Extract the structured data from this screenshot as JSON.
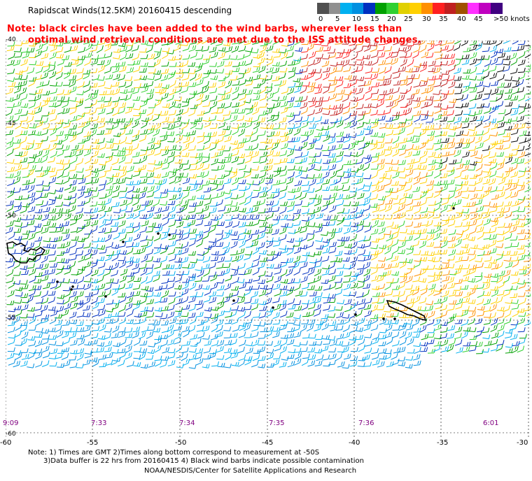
{
  "title": "Rapidscat Winds(12.5KM) 20160415 descending",
  "note_line1": "Note: black circles have been added to the wind barbs, wherever less than",
  "note_line2": "optimal wind retrieval conditions are met due to the ISS attitude changes.",
  "legend": {
    "labels": [
      "0",
      "5",
      "10",
      "15",
      "20",
      "25",
      "30",
      "35",
      "40",
      "45",
      ">50 knots"
    ],
    "colors": [
      "#505050",
      "#909090",
      "#00b0f0",
      "#0090e0",
      "#0030c0",
      "#00a000",
      "#30d030",
      "#e0d000",
      "#ffd000",
      "#ff9000",
      "#ff2020",
      "#c02020",
      "#a05000",
      "#ff30ff",
      "#c000c0",
      "#400080"
    ]
  },
  "time_labels": [
    "9:09",
    "7:33",
    "7:34",
    "7:35",
    "7:36",
    "6:01"
  ],
  "lon_labels": [
    "-60",
    "-55",
    "-50",
    "-45",
    "-40",
    "-35",
    "-30"
  ],
  "lat_labels": [
    "-40",
    "-45",
    "-50",
    "-55",
    "-60"
  ],
  "footer": {
    "line1": "Note: 1) Times are GMT 2)Times along bottom correspond to measurement at -50S",
    "line2": "3)Data buffer is 22 hrs from 20160415 4) Black wind barbs indicate possible contamination",
    "line3": "NOAA/NESDIS/Center for Satellite Applications and Research"
  }
}
